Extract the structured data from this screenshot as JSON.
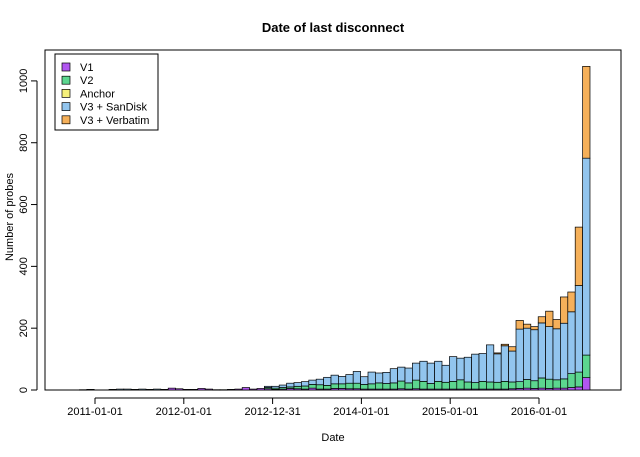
{
  "chart_data": {
    "type": "bar",
    "stacked": true,
    "title": "Date of last disconnect",
    "xlabel": "Date",
    "ylabel": "Number of probes",
    "ylim": [
      0,
      1100
    ],
    "yticks": [
      0,
      200,
      400,
      600,
      800,
      1000
    ],
    "xtick_labels": [
      "2011-01-01",
      "2012-01-01",
      "2012-12-31",
      "2014-01-01",
      "2015-01-01",
      "2016-01-01"
    ],
    "xtick_months": [
      0,
      12,
      24,
      36,
      48,
      60
    ],
    "x_start": "2011-01-01",
    "legend_position": "top-left",
    "series": [
      {
        "name": "V1",
        "color": "#b156f0",
        "values": [
          0,
          0,
          0,
          0,
          0,
          0,
          0,
          0,
          0,
          0,
          0,
          0,
          2,
          6,
          4,
          2,
          2,
          5,
          3,
          1,
          1,
          2,
          3,
          8,
          3,
          5,
          4,
          2,
          3,
          5,
          4,
          3,
          6,
          3,
          3,
          5,
          5,
          4,
          4,
          3,
          3,
          3,
          3,
          3,
          4,
          3,
          4,
          3,
          3,
          3,
          3,
          3,
          3,
          3,
          3,
          3,
          3,
          3,
          3,
          4,
          5,
          6,
          5,
          6,
          5,
          6,
          6,
          8,
          10,
          40
        ]
      },
      {
        "name": "V2",
        "color": "#5cd68f",
        "values": [
          0,
          0,
          0,
          0,
          0,
          0,
          0,
          0,
          0,
          0,
          0,
          0,
          0,
          0,
          0,
          0,
          0,
          0,
          0,
          0,
          0,
          0,
          0,
          0,
          0,
          0,
          4,
          4,
          5,
          5,
          8,
          10,
          12,
          14,
          12,
          15,
          15,
          18,
          18,
          15,
          17,
          20,
          18,
          20,
          25,
          20,
          28,
          25,
          18,
          25,
          22,
          25,
          30,
          23,
          21,
          25,
          23,
          22,
          25,
          22,
          22,
          28,
          25,
          33,
          30,
          27,
          30,
          45,
          48,
          73
        ]
      },
      {
        "name": "Anchor",
        "color": "#f5f07a",
        "values": [
          0,
          0,
          0,
          0,
          0,
          0,
          0,
          0,
          0,
          0,
          0,
          0,
          0,
          0,
          0,
          0,
          0,
          0,
          0,
          0,
          0,
          0,
          0,
          0,
          0,
          0,
          0,
          0,
          0,
          0,
          0,
          0,
          0,
          0,
          0,
          0,
          0,
          0,
          0,
          0,
          0,
          0,
          0,
          0,
          0,
          0,
          0,
          0,
          0,
          0,
          0,
          0,
          0,
          0,
          0,
          0,
          0,
          0,
          0,
          0,
          0,
          0,
          0,
          0,
          0,
          0,
          0,
          0,
          0,
          0
        ]
      },
      {
        "name": "V3 + SanDisk",
        "color": "#92c5ee",
        "values": [
          0,
          1,
          2,
          0,
          0,
          2,
          3,
          3,
          2,
          3,
          2,
          3,
          0,
          0,
          0,
          0,
          0,
          0,
          0,
          0,
          0,
          0,
          0,
          0,
          0,
          0,
          4,
          6,
          8,
          12,
          12,
          14,
          14,
          18,
          26,
          28,
          24,
          28,
          38,
          25,
          38,
          32,
          36,
          46,
          45,
          48,
          55,
          65,
          66,
          65,
          55,
          80,
          70,
          80,
          92,
          90,
          120,
          92,
          115,
          100,
          170,
          166,
          165,
          178,
          170,
          165,
          180,
          200,
          280,
          637
        ]
      },
      {
        "name": "V3 + Verbatim",
        "color": "#f5b05a",
        "values": [
          0,
          0,
          0,
          0,
          0,
          0,
          0,
          0,
          0,
          0,
          0,
          0,
          0,
          0,
          0,
          0,
          0,
          0,
          0,
          0,
          0,
          0,
          0,
          0,
          0,
          0,
          0,
          0,
          0,
          0,
          0,
          0,
          0,
          0,
          0,
          0,
          0,
          0,
          0,
          0,
          0,
          0,
          0,
          0,
          0,
          0,
          0,
          0,
          0,
          0,
          0,
          0,
          0,
          0,
          0,
          0,
          0,
          3,
          5,
          14,
          28,
          13,
          10,
          20,
          50,
          30,
          85,
          64,
          189,
          297
        ]
      }
    ]
  }
}
